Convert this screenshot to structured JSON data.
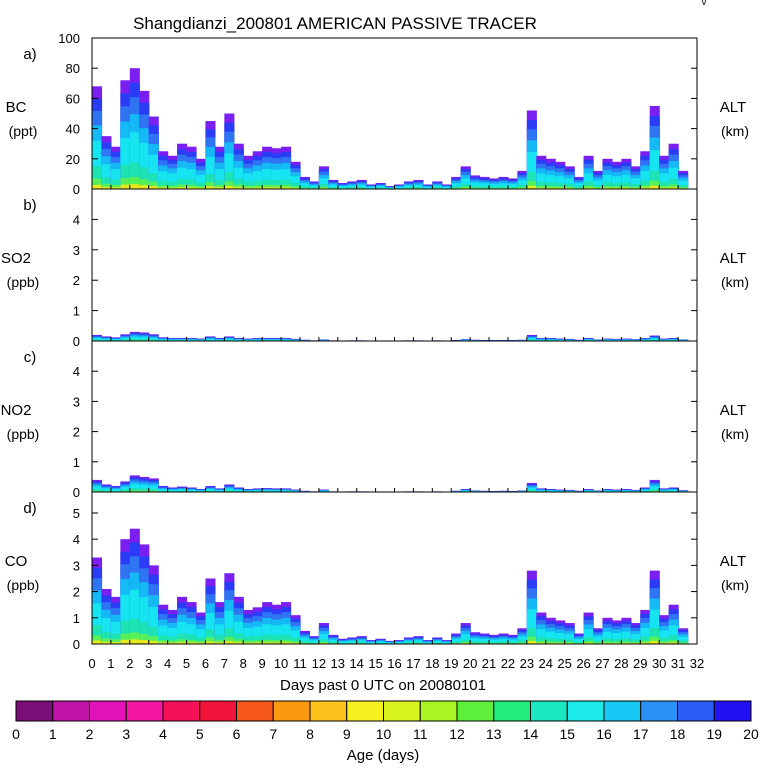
{
  "title": "Shangdianzi_200801 AMERICAN PASSIVE TRACER",
  "corner_mark": "v",
  "colors": {
    "purple_top": "#7a1ff0",
    "blue": "#2a3cf5",
    "mid_blue": "#2f74f2",
    "sky": "#15b9f5",
    "cyan": "#16e4f0",
    "teal": "#1ce2b4",
    "green": "#58f05a",
    "yellow": "#e6ea1c"
  },
  "chart_data": [
    {
      "panel": "a)",
      "type": "area",
      "ylabel": "BC",
      "yunits": "(ppt)",
      "right_label": "ALT",
      "right_units": "(km)",
      "ylim": [
        0,
        100
      ],
      "yticks": [
        "0",
        "20",
        "40",
        "60",
        "80",
        "100"
      ],
      "ytick_values": [
        0,
        20,
        40,
        60,
        80,
        100
      ],
      "x": [
        0,
        0.5,
        1,
        1.5,
        2,
        2.5,
        3,
        3.5,
        4,
        4.5,
        5,
        5.5,
        6,
        6.5,
        7,
        7.5,
        8,
        8.5,
        9,
        9.5,
        10,
        10.5,
        11,
        11.5,
        12,
        12.5,
        13,
        13.5,
        14,
        14.5,
        15,
        15.5,
        16,
        16.5,
        17,
        17.5,
        18,
        18.5,
        19,
        19.5,
        20,
        20.5,
        21,
        21.5,
        22,
        22.5,
        23,
        23.5,
        24,
        24.5,
        25,
        25.5,
        26,
        26.5,
        27,
        27.5,
        28,
        28.5,
        29,
        29.5,
        30,
        30.5,
        31
      ],
      "values": [
        68,
        35,
        28,
        72,
        80,
        65,
        48,
        25,
        22,
        30,
        28,
        20,
        45,
        28,
        50,
        30,
        22,
        25,
        28,
        27,
        28,
        18,
        8,
        5,
        15,
        6,
        4,
        5,
        6,
        3,
        4,
        2,
        3,
        5,
        6,
        3,
        5,
        3,
        8,
        15,
        9,
        8,
        7,
        8,
        7,
        12,
        52,
        22,
        20,
        18,
        15,
        8,
        22,
        12,
        20,
        18,
        20,
        15,
        25,
        55,
        22,
        30,
        12
      ]
    },
    {
      "panel": "b)",
      "type": "area",
      "ylabel": "SO2",
      "yunits": "(ppb)",
      "right_label": "ALT",
      "right_units": "(km)",
      "ylim": [
        0,
        5
      ],
      "yticks": [
        "0",
        "1",
        "2",
        "3",
        "4"
      ],
      "ytick_values": [
        0,
        1,
        2,
        3,
        4
      ],
      "x": [
        0,
        0.5,
        1,
        1.5,
        2,
        2.5,
        3,
        3.5,
        4,
        4.5,
        5,
        5.5,
        6,
        6.5,
        7,
        7.5,
        8,
        8.5,
        9,
        9.5,
        10,
        10.5,
        11,
        11.5,
        12,
        12.5,
        13,
        13.5,
        14,
        14.5,
        15,
        15.5,
        16,
        16.5,
        17,
        17.5,
        18,
        18.5,
        19,
        19.5,
        20,
        20.5,
        21,
        21.5,
        22,
        22.5,
        23,
        23.5,
        24,
        24.5,
        25,
        25.5,
        26,
        26.5,
        27,
        27.5,
        28,
        28.5,
        29,
        29.5,
        30,
        30.5,
        31
      ],
      "values": [
        0.2,
        0.15,
        0.12,
        0.22,
        0.3,
        0.28,
        0.22,
        0.12,
        0.1,
        0.1,
        0.1,
        0.08,
        0.15,
        0.1,
        0.15,
        0.1,
        0.08,
        0.1,
        0.1,
        0.1,
        0.1,
        0.07,
        0.04,
        0.02,
        0.05,
        0.02,
        0.01,
        0.02,
        0.02,
        0.01,
        0.01,
        0.01,
        0.01,
        0.02,
        0.02,
        0.01,
        0.02,
        0.01,
        0.03,
        0.06,
        0.04,
        0.03,
        0.03,
        0.03,
        0.03,
        0.04,
        0.2,
        0.1,
        0.1,
        0.08,
        0.07,
        0.04,
        0.1,
        0.05,
        0.08,
        0.07,
        0.08,
        0.06,
        0.1,
        0.18,
        0.08,
        0.1,
        0.05
      ]
    },
    {
      "panel": "c)",
      "type": "area",
      "ylabel": "NO2",
      "yunits": "(ppb)",
      "right_label": "ALT",
      "right_units": "(km)",
      "ylim": [
        0,
        5
      ],
      "yticks": [
        "0",
        "1",
        "2",
        "3",
        "4"
      ],
      "ytick_values": [
        0,
        1,
        2,
        3,
        4
      ],
      "x": [
        0,
        0.5,
        1,
        1.5,
        2,
        2.5,
        3,
        3.5,
        4,
        4.5,
        5,
        5.5,
        6,
        6.5,
        7,
        7.5,
        8,
        8.5,
        9,
        9.5,
        10,
        10.5,
        11,
        11.5,
        12,
        12.5,
        13,
        13.5,
        14,
        14.5,
        15,
        15.5,
        16,
        16.5,
        17,
        17.5,
        18,
        18.5,
        19,
        19.5,
        20,
        20.5,
        21,
        21.5,
        22,
        22.5,
        23,
        23.5,
        24,
        24.5,
        25,
        25.5,
        26,
        26.5,
        27,
        27.5,
        28,
        28.5,
        29,
        29.5,
        30,
        30.5,
        31
      ],
      "values": [
        0.4,
        0.25,
        0.2,
        0.35,
        0.55,
        0.5,
        0.45,
        0.2,
        0.15,
        0.18,
        0.15,
        0.1,
        0.2,
        0.12,
        0.25,
        0.15,
        0.1,
        0.12,
        0.13,
        0.12,
        0.12,
        0.08,
        0.04,
        0.02,
        0.08,
        0.02,
        0.01,
        0.02,
        0.02,
        0.01,
        0.01,
        0.01,
        0.01,
        0.02,
        0.02,
        0.01,
        0.02,
        0.01,
        0.04,
        0.1,
        0.05,
        0.04,
        0.03,
        0.04,
        0.03,
        0.05,
        0.3,
        0.12,
        0.1,
        0.08,
        0.07,
        0.04,
        0.1,
        0.05,
        0.1,
        0.08,
        0.1,
        0.07,
        0.15,
        0.4,
        0.12,
        0.15,
        0.06
      ]
    },
    {
      "panel": "d)",
      "type": "area",
      "ylabel": "CO",
      "yunits": "(ppb)",
      "right_label": "ALT",
      "right_units": "(km)",
      "ylim": [
        0,
        5.8
      ],
      "yticks": [
        "0",
        "1",
        "2",
        "3",
        "4",
        "5"
      ],
      "ytick_values": [
        0,
        1,
        2,
        3,
        4,
        5
      ],
      "x": [
        0,
        0.5,
        1,
        1.5,
        2,
        2.5,
        3,
        3.5,
        4,
        4.5,
        5,
        5.5,
        6,
        6.5,
        7,
        7.5,
        8,
        8.5,
        9,
        9.5,
        10,
        10.5,
        11,
        11.5,
        12,
        12.5,
        13,
        13.5,
        14,
        14.5,
        15,
        15.5,
        16,
        16.5,
        17,
        17.5,
        18,
        18.5,
        19,
        19.5,
        20,
        20.5,
        21,
        21.5,
        22,
        22.5,
        23,
        23.5,
        24,
        24.5,
        25,
        25.5,
        26,
        26.5,
        27,
        27.5,
        28,
        28.5,
        29,
        29.5,
        30,
        30.5,
        31
      ],
      "values": [
        3.3,
        2.1,
        1.8,
        4.0,
        4.4,
        3.8,
        3.0,
        1.5,
        1.3,
        1.8,
        1.6,
        1.2,
        2.5,
        1.6,
        2.7,
        1.8,
        1.3,
        1.4,
        1.6,
        1.5,
        1.6,
        1.1,
        0.5,
        0.3,
        0.8,
        0.35,
        0.2,
        0.25,
        0.3,
        0.15,
        0.2,
        0.12,
        0.15,
        0.25,
        0.3,
        0.15,
        0.25,
        0.15,
        0.4,
        0.8,
        0.45,
        0.4,
        0.35,
        0.4,
        0.35,
        0.6,
        2.8,
        1.2,
        1.0,
        0.9,
        0.8,
        0.4,
        1.2,
        0.6,
        1.0,
        0.9,
        1.0,
        0.8,
        1.3,
        2.8,
        1.1,
        1.5,
        0.6
      ]
    }
  ],
  "x_axis": {
    "label": "Days past 0 UTC on 20080101",
    "ticks": [
      "0",
      "1",
      "2",
      "3",
      "4",
      "5",
      "6",
      "7",
      "8",
      "9",
      "10",
      "11",
      "12",
      "13",
      "14",
      "15",
      "16",
      "17",
      "18",
      "19",
      "20",
      "21",
      "22",
      "23",
      "24",
      "25",
      "26",
      "27",
      "28",
      "29",
      "30",
      "31",
      "32"
    ],
    "xlim": [
      0,
      32
    ]
  },
  "colorbar": {
    "label": "Age (days)",
    "ticks": [
      "0",
      "1",
      "2",
      "3",
      "4",
      "5",
      "6",
      "7",
      "8",
      "9",
      "10",
      "11",
      "12",
      "13",
      "14",
      "15",
      "16",
      "17",
      "18",
      "19",
      "20"
    ],
    "colors": [
      "#7a0f7a",
      "#c113a8",
      "#e312b8",
      "#f416a0",
      "#f4115a",
      "#f2133a",
      "#f6581a",
      "#fb9a12",
      "#fbc31c",
      "#f6f021",
      "#d9f520",
      "#a9f422",
      "#5df03a",
      "#22ec7a",
      "#19e8c0",
      "#1ceaea",
      "#18c8f4",
      "#2a92f4",
      "#2b5df4",
      "#2410f4"
    ]
  }
}
